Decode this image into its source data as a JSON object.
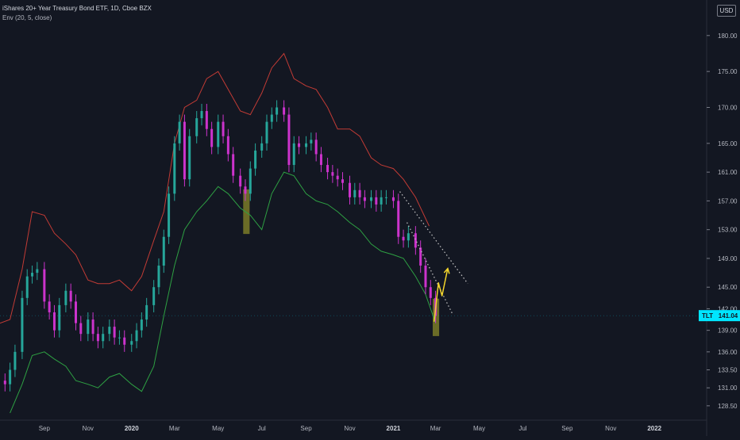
{
  "header": {
    "title": "iShares 20+ Year Treasury Bond ETF, 1D, Cboe BZX",
    "indicator": "Env (20, 5, close)"
  },
  "currency": "USD",
  "price_tag": {
    "symbol": "TLT",
    "value": "141.04"
  },
  "colors": {
    "background": "#131722",
    "upper_band": "#c23b35",
    "lower_band": "#2ea043",
    "candle_up": "#26a69a",
    "candle_down": "#cc33cc",
    "highlight_box": "#8a8a2a",
    "dotted_trend": "#c8c8c8",
    "arrow": "#f5d62b",
    "tag_bg": "#00e5ff"
  },
  "chart_data": {
    "type": "line",
    "title": "iShares 20+ Year Treasury Bond ETF, 1D, Cboe BZX",
    "y_axis": {
      "side": "right",
      "ticks": [
        "180.00",
        "175.00",
        "170.00",
        "165.00",
        "161.00",
        "157.00",
        "153.00",
        "149.00",
        "145.00",
        "142.00",
        "139.00",
        "136.00",
        "133.50",
        "131.00",
        "128.50"
      ],
      "range": [
        126.5,
        184.5
      ]
    },
    "x_axis": {
      "ticks": [
        "Sep",
        "Nov",
        "2020",
        "Mar",
        "May",
        "Jul",
        "Sep",
        "Nov",
        "2021",
        "Mar",
        "May",
        "Jul",
        "Sep",
        "Nov",
        "2022"
      ],
      "bold_ticks": [
        "2020",
        "2021",
        "2022"
      ],
      "range": [
        "2019-07-01",
        "2022-03-15"
      ]
    },
    "grid": false,
    "series": [
      {
        "name": "Env (20, 5, close) upper",
        "x": [
          "2019-07-01",
          "2019-07-15",
          "2019-08-01",
          "2019-08-15",
          "2019-09-01",
          "2019-09-15",
          "2019-10-01",
          "2019-10-15",
          "2019-11-01",
          "2019-11-15",
          "2019-12-01",
          "2019-12-15",
          "2020-01-01",
          "2020-01-15",
          "2020-02-01",
          "2020-02-15",
          "2020-03-01",
          "2020-03-15",
          "2020-04-01",
          "2020-04-15",
          "2020-05-01",
          "2020-05-15",
          "2020-06-01",
          "2020-06-15",
          "2020-07-01",
          "2020-07-15",
          "2020-08-01",
          "2020-08-15",
          "2020-09-01",
          "2020-09-15",
          "2020-10-01",
          "2020-10-15",
          "2020-11-01",
          "2020-11-15",
          "2020-12-01",
          "2020-12-15",
          "2021-01-01",
          "2021-01-15",
          "2021-02-01",
          "2021-02-20"
        ],
        "values": [
          140.0,
          140.5,
          147.5,
          155.5,
          155.0,
          152.5,
          151.0,
          149.5,
          146.0,
          145.5,
          145.5,
          146.0,
          144.5,
          146.5,
          151.5,
          155.5,
          165.0,
          170.0,
          171.0,
          174.0,
          175.0,
          172.5,
          169.5,
          169.0,
          172.0,
          175.5,
          177.5,
          174.0,
          173.0,
          172.5,
          170.0,
          167.0,
          167.0,
          166.0,
          163.0,
          162.0,
          161.5,
          160.0,
          157.5,
          153.5
        ]
      },
      {
        "name": "Env (20, 5, close) lower",
        "x": [
          "2019-07-15",
          "2019-08-01",
          "2019-08-15",
          "2019-09-01",
          "2019-09-15",
          "2019-10-01",
          "2019-10-15",
          "2019-11-01",
          "2019-11-15",
          "2019-12-01",
          "2019-12-15",
          "2020-01-01",
          "2020-01-15",
          "2020-02-01",
          "2020-02-15",
          "2020-03-01",
          "2020-03-15",
          "2020-04-01",
          "2020-04-15",
          "2020-05-01",
          "2020-05-15",
          "2020-06-01",
          "2020-06-15",
          "2020-07-01",
          "2020-07-15",
          "2020-08-01",
          "2020-08-15",
          "2020-09-01",
          "2020-09-15",
          "2020-10-01",
          "2020-10-15",
          "2020-11-01",
          "2020-11-15",
          "2020-12-01",
          "2020-12-15",
          "2021-01-01",
          "2021-01-15",
          "2021-02-01",
          "2021-02-15",
          "2021-03-01"
        ],
        "values": [
          127.5,
          131.5,
          135.5,
          136.0,
          135.0,
          134.0,
          132.0,
          131.5,
          131.0,
          132.5,
          133.0,
          131.5,
          130.5,
          134.0,
          141.0,
          148.0,
          153.0,
          155.5,
          157.0,
          159.0,
          158.0,
          156.0,
          155.0,
          153.0,
          158.0,
          161.0,
          160.5,
          158.0,
          157.0,
          156.5,
          155.5,
          154.0,
          153.0,
          151.0,
          150.0,
          149.5,
          149.0,
          146.5,
          144.0,
          140.0
        ]
      },
      {
        "name": "Price",
        "x": [
          "2019-07-01",
          "2019-07-08",
          "2019-07-15",
          "2019-07-22",
          "2019-08-01",
          "2019-08-08",
          "2019-08-15",
          "2019-08-22",
          "2019-09-01",
          "2019-09-08",
          "2019-09-15",
          "2019-09-22",
          "2019-10-01",
          "2019-10-08",
          "2019-10-15",
          "2019-10-22",
          "2019-11-01",
          "2019-11-08",
          "2019-11-15",
          "2019-11-22",
          "2019-12-01",
          "2019-12-08",
          "2019-12-15",
          "2019-12-22",
          "2020-01-01",
          "2020-01-08",
          "2020-01-15",
          "2020-01-22",
          "2020-02-01",
          "2020-02-08",
          "2020-02-15",
          "2020-02-22",
          "2020-03-01",
          "2020-03-08",
          "2020-03-15",
          "2020-03-22",
          "2020-04-01",
          "2020-04-08",
          "2020-04-15",
          "2020-04-22",
          "2020-05-01",
          "2020-05-08",
          "2020-05-15",
          "2020-05-22",
          "2020-06-01",
          "2020-06-08",
          "2020-06-15",
          "2020-06-22",
          "2020-07-01",
          "2020-07-08",
          "2020-07-15",
          "2020-07-22",
          "2020-08-01",
          "2020-08-08",
          "2020-08-15",
          "2020-08-22",
          "2020-09-01",
          "2020-09-08",
          "2020-09-15",
          "2020-09-22",
          "2020-10-01",
          "2020-10-08",
          "2020-10-15",
          "2020-10-22",
          "2020-11-01",
          "2020-11-08",
          "2020-11-15",
          "2020-11-22",
          "2020-12-01",
          "2020-12-08",
          "2020-12-15",
          "2020-12-22",
          "2021-01-01",
          "2021-01-08",
          "2021-01-15",
          "2021-01-22",
          "2021-02-01",
          "2021-02-08",
          "2021-02-15",
          "2021-02-22",
          "2021-03-01"
        ],
        "values": [
          132.0,
          131.5,
          133.5,
          136.0,
          143.5,
          146.5,
          147.0,
          147.5,
          143.0,
          141.5,
          139.0,
          142.5,
          144.5,
          143.0,
          140.0,
          138.5,
          140.5,
          138.5,
          137.5,
          138.5,
          139.5,
          138.0,
          138.0,
          137.0,
          137.5,
          139.0,
          140.5,
          142.5,
          145.0,
          148.0,
          152.0,
          158.0,
          165.0,
          168.0,
          160.0,
          166.0,
          168.5,
          169.5,
          167.0,
          164.5,
          168.0,
          166.0,
          163.5,
          160.5,
          159.0,
          158.0,
          161.5,
          164.0,
          165.0,
          168.0,
          169.0,
          170.0,
          169.0,
          162.0,
          165.0,
          164.5,
          165.0,
          165.5,
          163.5,
          162.0,
          161.0,
          160.5,
          160.0,
          159.5,
          157.5,
          158.5,
          157.5,
          157.0,
          157.5,
          156.5,
          157.5,
          157.5,
          157.0,
          152.0,
          151.5,
          152.5,
          150.5,
          148.0,
          145.0,
          143.5,
          141.0
        ]
      }
    ],
    "annotations": [
      {
        "kind": "box",
        "x": [
          "2020-06-05",
          "2020-06-14"
        ],
        "y": [
          152.4,
          158.6
        ]
      },
      {
        "kind": "box",
        "x": [
          "2021-02-25",
          "2021-03-06"
        ],
        "y": [
          138.2,
          143.4
        ]
      },
      {
        "kind": "dotted-line",
        "x": [
          "2021-01-10",
          "2021-04-15"
        ],
        "y": [
          158.3,
          145.5
        ]
      },
      {
        "kind": "dotted-line",
        "x": [
          "2021-01-20",
          "2021-03-25"
        ],
        "y": [
          154.0,
          141.2
        ]
      },
      {
        "kind": "arrow",
        "x": [
          "2021-02-27",
          "2021-03-05",
          "2021-03-10",
          "2021-03-18"
        ],
        "y": [
          140.2,
          145.6,
          143.8,
          147.6
        ]
      }
    ],
    "last_price": 141.04
  }
}
